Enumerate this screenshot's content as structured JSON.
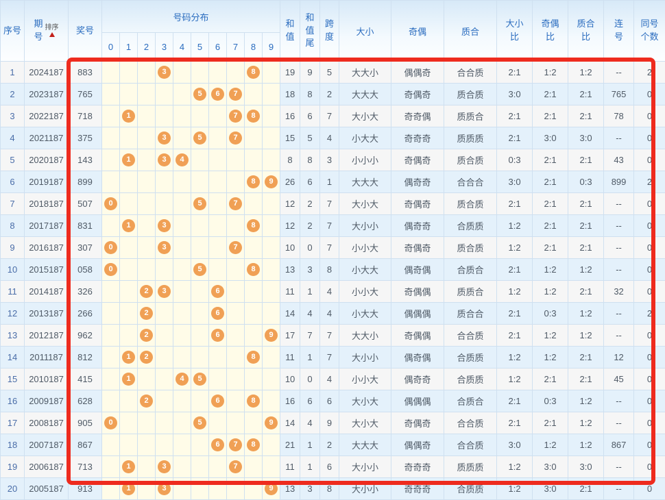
{
  "header": {
    "seq": "序号",
    "period": "期\n号",
    "sort_label": "排序",
    "prize": "奖号",
    "distribution": "号码分布",
    "digits": [
      "0",
      "1",
      "2",
      "3",
      "4",
      "5",
      "6",
      "7",
      "8",
      "9"
    ],
    "sum": "和\n值",
    "sum_tail": "和\n值\n尾",
    "span": "跨\n度",
    "size": "大小",
    "parity": "奇偶",
    "prime": "质合",
    "size_ratio": "大小\n比",
    "parity_ratio": "奇偶\n比",
    "prime_ratio": "质合\n比",
    "consecutive": "连\n号",
    "same_count": "同号\n个数"
  },
  "rows": [
    {
      "seq": "1",
      "period": "2024187",
      "prize": "883",
      "balls": [
        3,
        8
      ],
      "sum": "19",
      "sum_tail": "9",
      "span": "5",
      "size": "大大小",
      "parity": "偶偶奇",
      "prime": "合合质",
      "size_ratio": "2:1",
      "parity_ratio": "1:2",
      "prime_ratio": "1:2",
      "consecutive": "--",
      "same_count": "2"
    },
    {
      "seq": "2",
      "period": "2023187",
      "prize": "765",
      "balls": [
        5,
        6,
        7
      ],
      "sum": "18",
      "sum_tail": "8",
      "span": "2",
      "size": "大大大",
      "parity": "奇偶奇",
      "prime": "质合质",
      "size_ratio": "3:0",
      "parity_ratio": "2:1",
      "prime_ratio": "2:1",
      "consecutive": "765",
      "same_count": "0"
    },
    {
      "seq": "3",
      "period": "2022187",
      "prize": "718",
      "balls": [
        1,
        7,
        8
      ],
      "sum": "16",
      "sum_tail": "6",
      "span": "7",
      "size": "大小大",
      "parity": "奇奇偶",
      "prime": "质质合",
      "size_ratio": "2:1",
      "parity_ratio": "2:1",
      "prime_ratio": "2:1",
      "consecutive": "78",
      "same_count": "0"
    },
    {
      "seq": "4",
      "period": "2021187",
      "prize": "375",
      "balls": [
        3,
        5,
        7
      ],
      "sum": "15",
      "sum_tail": "5",
      "span": "4",
      "size": "小大大",
      "parity": "奇奇奇",
      "prime": "质质质",
      "size_ratio": "2:1",
      "parity_ratio": "3:0",
      "prime_ratio": "3:0",
      "consecutive": "--",
      "same_count": "0"
    },
    {
      "seq": "5",
      "period": "2020187",
      "prize": "143",
      "balls": [
        1,
        3,
        4
      ],
      "sum": "8",
      "sum_tail": "8",
      "span": "3",
      "size": "小小小",
      "parity": "奇偶奇",
      "prime": "质合质",
      "size_ratio": "0:3",
      "parity_ratio": "2:1",
      "prime_ratio": "2:1",
      "consecutive": "43",
      "same_count": "0"
    },
    {
      "seq": "6",
      "period": "2019187",
      "prize": "899",
      "balls": [
        8,
        9
      ],
      "sum": "26",
      "sum_tail": "6",
      "span": "1",
      "size": "大大大",
      "parity": "偶奇奇",
      "prime": "合合合",
      "size_ratio": "3:0",
      "parity_ratio": "2:1",
      "prime_ratio": "0:3",
      "consecutive": "899",
      "same_count": "2"
    },
    {
      "seq": "7",
      "period": "2018187",
      "prize": "507",
      "balls": [
        0,
        5,
        7
      ],
      "sum": "12",
      "sum_tail": "2",
      "span": "7",
      "size": "大小大",
      "parity": "奇偶奇",
      "prime": "质合质",
      "size_ratio": "2:1",
      "parity_ratio": "2:1",
      "prime_ratio": "2:1",
      "consecutive": "--",
      "same_count": "0"
    },
    {
      "seq": "8",
      "period": "2017187",
      "prize": "831",
      "balls": [
        1,
        3,
        8
      ],
      "sum": "12",
      "sum_tail": "2",
      "span": "7",
      "size": "大小小",
      "parity": "偶奇奇",
      "prime": "合质质",
      "size_ratio": "1:2",
      "parity_ratio": "2:1",
      "prime_ratio": "2:1",
      "consecutive": "--",
      "same_count": "0"
    },
    {
      "seq": "9",
      "period": "2016187",
      "prize": "307",
      "balls": [
        0,
        3,
        7
      ],
      "sum": "10",
      "sum_tail": "0",
      "span": "7",
      "size": "小小大",
      "parity": "奇偶奇",
      "prime": "质合质",
      "size_ratio": "1:2",
      "parity_ratio": "2:1",
      "prime_ratio": "2:1",
      "consecutive": "--",
      "same_count": "0"
    },
    {
      "seq": "10",
      "period": "2015187",
      "prize": "058",
      "balls": [
        0,
        5,
        8
      ],
      "sum": "13",
      "sum_tail": "3",
      "span": "8",
      "size": "小大大",
      "parity": "偶奇偶",
      "prime": "合质合",
      "size_ratio": "2:1",
      "parity_ratio": "1:2",
      "prime_ratio": "1:2",
      "consecutive": "--",
      "same_count": "0"
    },
    {
      "seq": "11",
      "period": "2014187",
      "prize": "326",
      "balls": [
        2,
        3,
        6
      ],
      "sum": "11",
      "sum_tail": "1",
      "span": "4",
      "size": "小小大",
      "parity": "奇偶偶",
      "prime": "质质合",
      "size_ratio": "1:2",
      "parity_ratio": "1:2",
      "prime_ratio": "2:1",
      "consecutive": "32",
      "same_count": "0"
    },
    {
      "seq": "12",
      "period": "2013187",
      "prize": "266",
      "balls": [
        2,
        6
      ],
      "sum": "14",
      "sum_tail": "4",
      "span": "4",
      "size": "小大大",
      "parity": "偶偶偶",
      "prime": "质合合",
      "size_ratio": "2:1",
      "parity_ratio": "0:3",
      "prime_ratio": "1:2",
      "consecutive": "--",
      "same_count": "2"
    },
    {
      "seq": "13",
      "period": "2012187",
      "prize": "962",
      "balls": [
        2,
        6,
        9
      ],
      "sum": "17",
      "sum_tail": "7",
      "span": "7",
      "size": "大大小",
      "parity": "奇偶偶",
      "prime": "合合质",
      "size_ratio": "2:1",
      "parity_ratio": "1:2",
      "prime_ratio": "1:2",
      "consecutive": "--",
      "same_count": "0"
    },
    {
      "seq": "14",
      "period": "2011187",
      "prize": "812",
      "balls": [
        1,
        2,
        8
      ],
      "sum": "11",
      "sum_tail": "1",
      "span": "7",
      "size": "大小小",
      "parity": "偶奇偶",
      "prime": "合质质",
      "size_ratio": "1:2",
      "parity_ratio": "1:2",
      "prime_ratio": "2:1",
      "consecutive": "12",
      "same_count": "0"
    },
    {
      "seq": "15",
      "period": "2010187",
      "prize": "415",
      "balls": [
        1,
        4,
        5
      ],
      "sum": "10",
      "sum_tail": "0",
      "span": "4",
      "size": "小小大",
      "parity": "偶奇奇",
      "prime": "合质质",
      "size_ratio": "1:2",
      "parity_ratio": "2:1",
      "prime_ratio": "2:1",
      "consecutive": "45",
      "same_count": "0"
    },
    {
      "seq": "16",
      "period": "2009187",
      "prize": "628",
      "balls": [
        2,
        6,
        8
      ],
      "sum": "16",
      "sum_tail": "6",
      "span": "6",
      "size": "大小大",
      "parity": "偶偶偶",
      "prime": "合质合",
      "size_ratio": "2:1",
      "parity_ratio": "0:3",
      "prime_ratio": "1:2",
      "consecutive": "--",
      "same_count": "0"
    },
    {
      "seq": "17",
      "period": "2008187",
      "prize": "905",
      "balls": [
        0,
        5,
        9
      ],
      "sum": "14",
      "sum_tail": "4",
      "span": "9",
      "size": "大小大",
      "parity": "奇偶奇",
      "prime": "合合质",
      "size_ratio": "2:1",
      "parity_ratio": "2:1",
      "prime_ratio": "1:2",
      "consecutive": "--",
      "same_count": "0"
    },
    {
      "seq": "18",
      "period": "2007187",
      "prize": "867",
      "balls": [
        6,
        7,
        8
      ],
      "sum": "21",
      "sum_tail": "1",
      "span": "2",
      "size": "大大大",
      "parity": "偶偶奇",
      "prime": "合合质",
      "size_ratio": "3:0",
      "parity_ratio": "1:2",
      "prime_ratio": "1:2",
      "consecutive": "867",
      "same_count": "0"
    },
    {
      "seq": "19",
      "period": "2006187",
      "prize": "713",
      "balls": [
        1,
        3,
        7
      ],
      "sum": "11",
      "sum_tail": "1",
      "span": "6",
      "size": "大小小",
      "parity": "奇奇奇",
      "prime": "质质质",
      "size_ratio": "1:2",
      "parity_ratio": "3:0",
      "prime_ratio": "3:0",
      "consecutive": "--",
      "same_count": "0"
    },
    {
      "seq": "20",
      "period": "2005187",
      "prize": "913",
      "balls": [
        1,
        3,
        9
      ],
      "sum": "13",
      "sum_tail": "3",
      "span": "8",
      "size": "大小小",
      "parity": "奇奇奇",
      "prime": "合质质",
      "size_ratio": "1:2",
      "parity_ratio": "3:0",
      "prime_ratio": "2:1",
      "consecutive": "--",
      "same_count": "0"
    }
  ],
  "colors": {
    "header_text": "#2a6cbf",
    "ball": "#f0a055",
    "highlight_border": "#ee2b1e",
    "row_even_bg": "#e4f1fb",
    "row_odd_bg": "#f6f6f6",
    "distribution_bg": "#fffce8",
    "sort_arrow": "#c2201a"
  }
}
